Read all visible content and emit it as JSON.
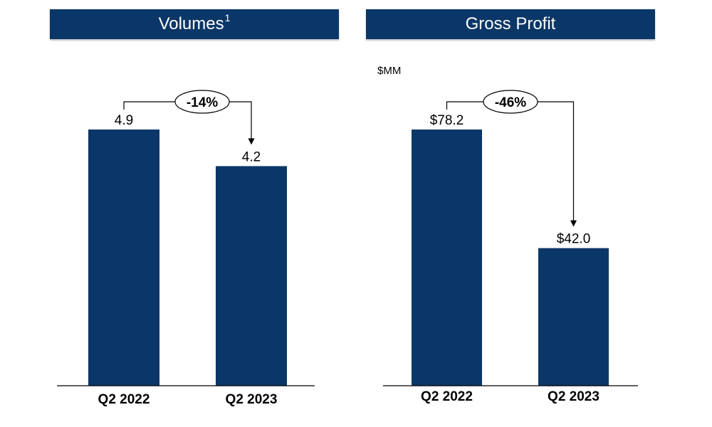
{
  "chart_data": [
    {
      "type": "bar",
      "title": "Volumes",
      "title_superscript": "1",
      "unit": "",
      "categories": [
        "Q2 2022",
        "Q2 2023"
      ],
      "values": [
        4.9,
        4.2
      ],
      "value_labels": [
        "4.9",
        "4.2"
      ],
      "change_label": "-14%",
      "ylim": [
        0,
        4.9
      ],
      "bar_color": "#0b3768"
    },
    {
      "type": "bar",
      "title": "Gross Profit",
      "unit": "$MM",
      "categories": [
        "Q2 2022",
        "Q2 2023"
      ],
      "values": [
        78.2,
        42.0
      ],
      "value_labels": [
        "$78.2",
        "$42.0"
      ],
      "change_label": "-46%",
      "ylim": [
        0,
        78.2
      ],
      "bar_color": "#0b3768"
    }
  ]
}
